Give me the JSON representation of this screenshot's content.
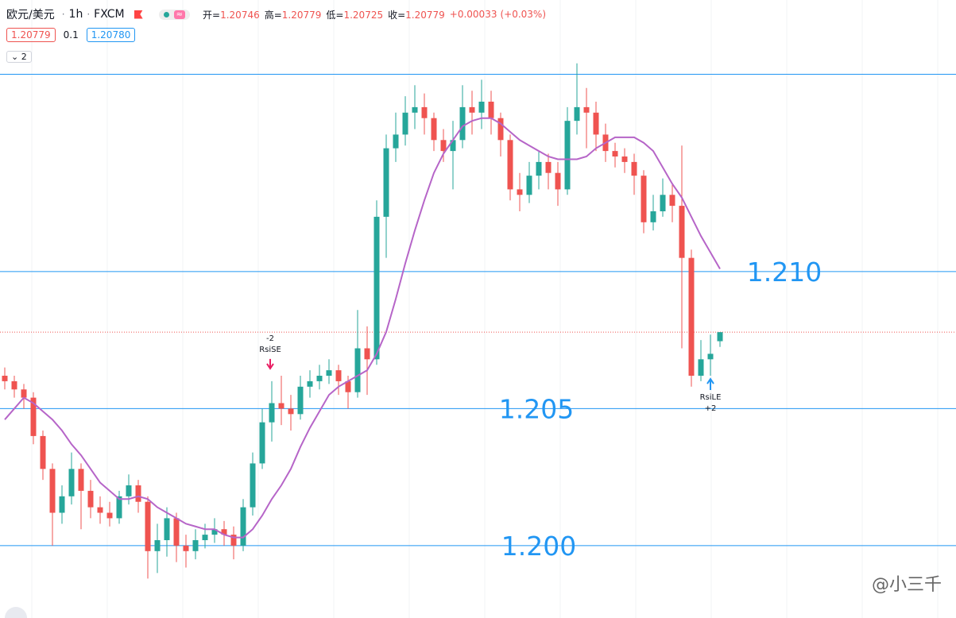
{
  "header": {
    "symbol": "欧元/美元",
    "separator": "·",
    "interval": "1h",
    "exchange": "FXCM",
    "ohlc": [
      {
        "key": "开=",
        "value": 1.20746
      },
      {
        "key": "高=",
        "value": 1.20779
      },
      {
        "key": "低=",
        "value": 1.20725
      },
      {
        "key": "收=",
        "value": 1.20779
      }
    ],
    "change": {
      "value": 0.00033,
      "label": "+0.00033"
    },
    "change_pct": {
      "value": 0.03,
      "label": "(+0.03%)"
    },
    "bid": 1.20779,
    "spread": 0.1,
    "ask": {
      "value": 1.2078,
      "label": "1.20780"
    },
    "indicators": 2
  },
  "watermark": "@小三千",
  "chart_data": {
    "type": "candlestick",
    "up_color": "#26a69a",
    "down_color": "#ef5350",
    "ylim": [
      1.19736,
      1.21991
    ],
    "open": [
      1.2062,
      1.206,
      1.2057,
      1.2054,
      1.204,
      1.2028,
      1.2012,
      1.2018,
      1.2028,
      1.202,
      1.2014,
      1.2012,
      1.201,
      1.2018,
      1.2022,
      1.2016,
      1.1998,
      1.2002,
      1.201,
      1.2,
      1.1998,
      1.2002,
      1.2004,
      1.2006,
      1.2004,
      1.2,
      1.2014,
      1.203,
      1.2045,
      1.2052,
      1.205,
      1.2048,
      1.2058,
      1.206,
      1.2062,
      1.2064,
      1.206,
      1.2056,
      1.2072,
      1.2068,
      1.212,
      1.2145,
      1.215,
      1.2158,
      1.216,
      1.2156,
      1.2148,
      1.2144,
      1.2148,
      1.216,
      1.2158,
      1.2162,
      1.2156,
      1.2148,
      1.213,
      1.2128,
      1.2135,
      1.214,
      1.2136,
      1.213,
      1.2155,
      1.216,
      1.2158,
      1.215,
      1.2144,
      1.2142,
      1.214,
      1.2135,
      1.2118,
      1.2122,
      1.2128,
      1.2124,
      1.2105,
      1.2062,
      1.2068,
      1.20746
    ],
    "high": [
      1.2065,
      1.2062,
      1.2059,
      1.2056,
      1.2042,
      1.203,
      1.2022,
      1.2034,
      1.203,
      1.2024,
      1.2018,
      1.2016,
      1.202,
      1.2026,
      1.2024,
      1.2018,
      1.2008,
      1.2014,
      1.2012,
      1.2004,
      1.2006,
      1.2008,
      1.201,
      1.2009,
      1.2007,
      1.2017,
      1.2034,
      1.205,
      1.206,
      1.2062,
      1.2055,
      1.2062,
      1.2064,
      1.2066,
      1.2068,
      1.2066,
      1.2062,
      1.2086,
      1.208,
      1.2126,
      1.215,
      1.2158,
      1.2164,
      1.2168,
      1.2165,
      1.2158,
      1.2152,
      1.2155,
      1.2168,
      1.2166,
      1.217,
      1.2166,
      1.2158,
      1.215,
      1.2136,
      1.214,
      1.2144,
      1.2143,
      1.214,
      1.216,
      1.2176,
      1.2167,
      1.2162,
      1.2154,
      1.2147,
      1.2145,
      1.2143,
      1.2137,
      1.2128,
      1.2134,
      1.2132,
      1.2146,
      1.2108,
      1.2075,
      1.2077,
      1.20779
    ],
    "low": [
      1.2057,
      1.2054,
      1.205,
      1.2037,
      1.2024,
      1.2,
      1.2008,
      1.2015,
      1.2006,
      1.201,
      1.2008,
      1.2007,
      1.2008,
      1.2015,
      1.2012,
      1.1988,
      1.199,
      1.1996,
      1.1994,
      1.1992,
      1.1995,
      1.1999,
      1.2001,
      1.2,
      1.1995,
      1.1998,
      1.2011,
      1.2028,
      1.2038,
      1.2044,
      1.2042,
      1.2046,
      1.2054,
      1.2057,
      1.2059,
      1.2055,
      1.205,
      1.2054,
      1.2055,
      1.2066,
      1.2105,
      1.214,
      1.2146,
      1.2152,
      1.215,
      1.2144,
      1.214,
      1.213,
      1.2145,
      1.215,
      1.2152,
      1.215,
      1.2142,
      1.2126,
      1.2122,
      1.2125,
      1.213,
      1.213,
      1.2124,
      1.2128,
      1.215,
      1.2145,
      1.2144,
      1.214,
      1.2138,
      1.2136,
      1.2128,
      1.2114,
      1.2115,
      1.212,
      1.2118,
      1.2072,
      1.2058,
      1.206,
      1.2062,
      1.20725
    ],
    "close": [
      1.206,
      1.2057,
      1.2054,
      1.204,
      1.2028,
      1.2012,
      1.2018,
      1.2028,
      1.202,
      1.2014,
      1.2012,
      1.201,
      1.2018,
      1.2022,
      1.2016,
      1.1998,
      1.2002,
      1.201,
      1.2,
      1.1998,
      1.2002,
      1.2004,
      1.2006,
      1.2004,
      1.2,
      1.2014,
      1.203,
      1.2045,
      1.2052,
      1.205,
      1.2048,
      1.2058,
      1.206,
      1.2062,
      1.2064,
      1.206,
      1.2056,
      1.2072,
      1.2068,
      1.212,
      1.2145,
      1.215,
      1.2158,
      1.216,
      1.2156,
      1.2148,
      1.2144,
      1.2148,
      1.216,
      1.2158,
      1.2162,
      1.2156,
      1.2148,
      1.213,
      1.2128,
      1.2135,
      1.214,
      1.2136,
      1.213,
      1.2155,
      1.216,
      1.2158,
      1.215,
      1.2144,
      1.2142,
      1.214,
      1.2135,
      1.2118,
      1.2122,
      1.2128,
      1.2124,
      1.2105,
      1.2062,
      1.2068,
      1.207,
      1.20779
    ],
    "series": [
      {
        "color": "#b665c8",
        "values": [
          1.2046,
          1.205,
          1.2054,
          1.2052,
          1.2049,
          1.2046,
          1.2042,
          1.2037,
          1.2033,
          1.2028,
          1.2023,
          1.202,
          1.2017,
          1.2017,
          1.2018,
          1.2017,
          1.2014,
          1.2012,
          1.201,
          1.2008,
          1.2007,
          1.2006,
          1.2006,
          1.2004,
          1.2003,
          1.2003,
          1.2006,
          1.2011,
          1.2017,
          1.2022,
          1.2028,
          1.2036,
          1.2043,
          1.2049,
          1.2055,
          1.2058,
          1.206,
          1.2062,
          1.2064,
          1.207,
          1.2078,
          1.209,
          1.2103,
          1.2115,
          1.2126,
          1.2136,
          1.2143,
          1.2148,
          1.2153,
          1.2155,
          1.2156,
          1.2156,
          1.2154,
          1.2151,
          1.2148,
          1.2146,
          1.2144,
          1.2142,
          1.2141,
          1.2141,
          1.2141,
          1.2142,
          1.2145,
          1.2147,
          1.2149,
          1.2149,
          1.2149,
          1.2147,
          1.2144,
          1.2138,
          1.2132,
          1.2127,
          1.212,
          1.2113,
          1.2107,
          1.2101
        ]
      }
    ],
    "levels": [
      {
        "value": 1.2172
      },
      {
        "value": 1.21,
        "label": "1.210"
      },
      {
        "value": 1.205,
        "label": "1.205"
      },
      {
        "value": 1.2,
        "label": "1.200"
      }
    ],
    "level_color": "#2196f3",
    "last_price": 1.20779,
    "signals": [
      {
        "qty": -2,
        "label": "RsiSE"
      },
      {
        "label": "RsiLE",
        "qty": {
          "value": 2,
          "label": "+2"
        }
      }
    ]
  }
}
